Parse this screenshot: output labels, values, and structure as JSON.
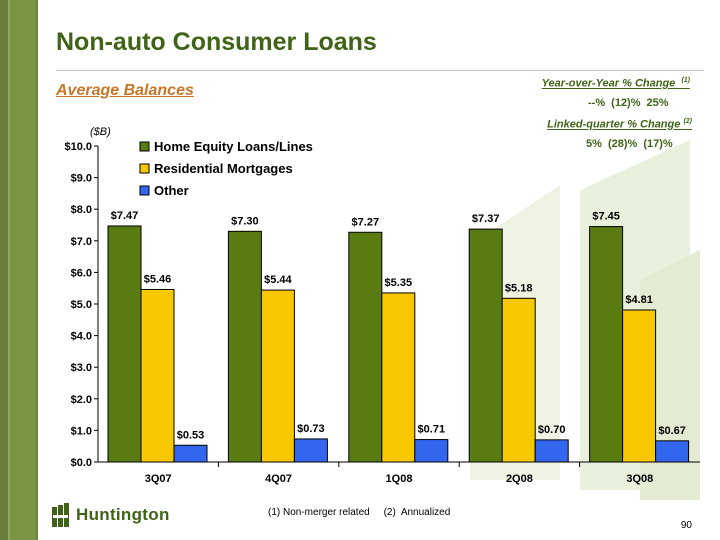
{
  "title": "Non-auto Consumer Loans",
  "subtitle": "Average Balances",
  "yoy": {
    "label": "Year-over-Year % Change",
    "note_ref": "(1)",
    "values": "--%   (12)%   25%"
  },
  "linked_quarter": {
    "label": "Linked-quarter % Change",
    "note_ref": "(2)",
    "values": "5%   (28)% (17)%"
  },
  "unit_label": "($B)",
  "footnotes": "(1) Non-merger related     (2)  Annualized",
  "page_number": "90",
  "logo_text": "Huntington",
  "colors": {
    "green": "#5a7a12",
    "yellow": "#f7c800",
    "blue": "#3366ee",
    "title": "#3f6317",
    "accent": "#c87628"
  },
  "chart_data": {
    "type": "bar",
    "categories": [
      "3Q07",
      "4Q07",
      "1Q08",
      "2Q08",
      "3Q08"
    ],
    "series": [
      {
        "name": "Home Equity Loans/Lines",
        "values": [
          7.47,
          7.3,
          7.27,
          7.37,
          7.45
        ],
        "labels": [
          "$7.47",
          "$7.30",
          "$7.27",
          "$7.37",
          "$7.45"
        ],
        "color": "#5a7a12"
      },
      {
        "name": "Residential Mortgages",
        "values": [
          5.46,
          5.44,
          5.35,
          5.18,
          4.81
        ],
        "labels": [
          "$5.46",
          "$5.44",
          "$5.35",
          "$5.18",
          "$4.81"
        ],
        "color": "#f7c800"
      },
      {
        "name": "Other",
        "values": [
          0.53,
          0.73,
          0.71,
          0.7,
          0.67
        ],
        "labels": [
          "$0.53",
          "$0.73",
          "$0.71",
          "$0.70",
          "$0.67"
        ],
        "color": "#3366ee"
      }
    ],
    "ylim": [
      0,
      10
    ],
    "yticks": [
      "$0.0",
      "$1.0",
      "$2.0",
      "$3.0",
      "$4.0",
      "$5.0",
      "$6.0",
      "$7.0",
      "$8.0",
      "$9.0",
      "$10.0"
    ],
    "legend_position": "top-left",
    "grid": false
  }
}
